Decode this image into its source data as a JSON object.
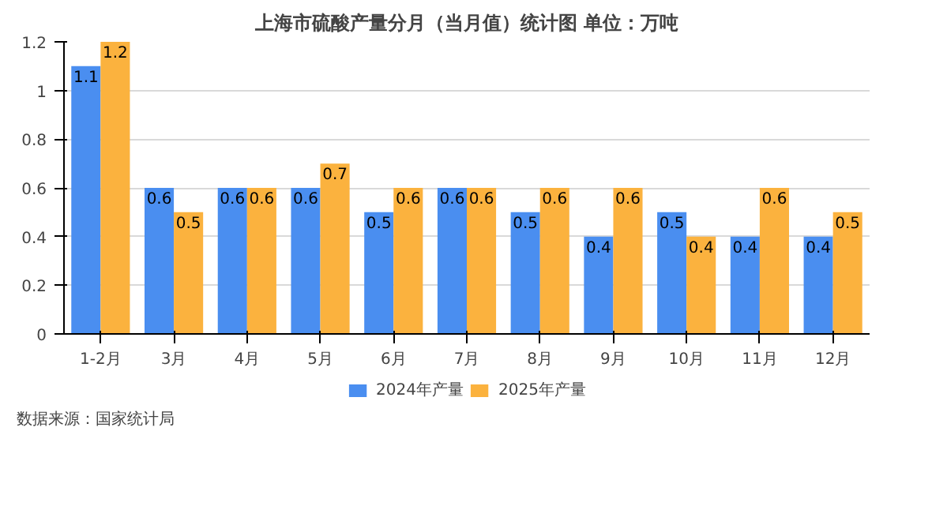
{
  "chart_data": {
    "type": "bar",
    "title": "上海市硫酸产量分月（当月值）统计图 单位：万吨",
    "categories": [
      "1-2月",
      "3月",
      "4月",
      "5月",
      "6月",
      "7月",
      "8月",
      "9月",
      "10月",
      "11月",
      "12月"
    ],
    "series": [
      {
        "name": "2024年产量",
        "color": "#4a8ef0",
        "values": [
          1.1,
          0.6,
          0.6,
          0.6,
          0.5,
          0.6,
          0.5,
          0.4,
          0.5,
          0.4,
          0.4
        ]
      },
      {
        "name": "2025年产量",
        "color": "#fbb23e",
        "values": [
          1.2,
          0.5,
          0.6,
          0.7,
          0.6,
          0.6,
          0.6,
          0.6,
          0.4,
          0.6,
          0.5
        ]
      }
    ],
    "ylim": [
      0,
      1.2
    ],
    "yticks": [
      0,
      0.2,
      0.4,
      0.6,
      0.8,
      1,
      1.2
    ],
    "grid": "y",
    "legend": "bottom",
    "data_labels": true,
    "annotations": [
      "数据来源：国家统计局"
    ]
  }
}
